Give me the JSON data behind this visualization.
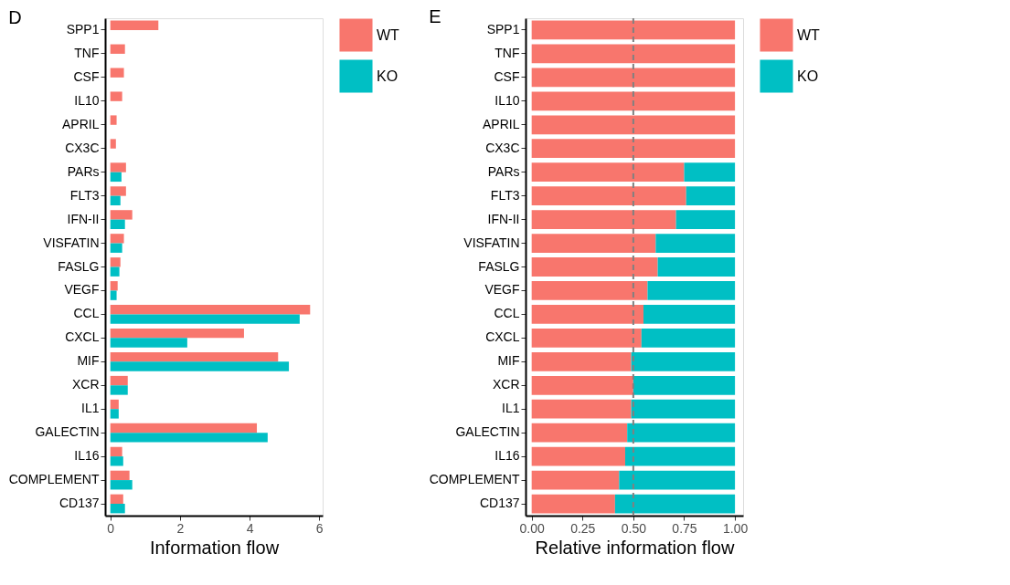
{
  "chart_data": [
    {
      "type": "bar",
      "orientation": "horizontal",
      "title": "D",
      "xlabel": "Information flow",
      "categories": [
        "SPP1",
        "TNF",
        "CSF",
        "IL10",
        "APRIL",
        "CX3C",
        "PARs",
        "FLT3",
        "IFN-II",
        "VISFATIN",
        "FASLG",
        "VEGF",
        "CCL",
        "CXCL",
        "MIF",
        "XCR",
        "IL1",
        "GALECTIN",
        "IL16",
        "COMPLEMENT",
        "CD137"
      ],
      "series": [
        {
          "name": "WT",
          "color": "#f8766d",
          "values": [
            1.38,
            0.42,
            0.39,
            0.34,
            0.18,
            0.16,
            0.45,
            0.45,
            0.63,
            0.39,
            0.29,
            0.21,
            5.74,
            3.84,
            4.82,
            0.5,
            0.24,
            4.21,
            0.34,
            0.55,
            0.37
          ]
        },
        {
          "name": "KO",
          "color": "#00bfc4",
          "values": [
            null,
            null,
            null,
            null,
            null,
            null,
            0.32,
            0.29,
            0.42,
            0.34,
            0.26,
            0.18,
            5.44,
            2.21,
            5.13,
            0.5,
            0.24,
            4.52,
            0.37,
            0.63,
            0.42
          ]
        }
      ],
      "xlim": [
        -0.15,
        6.1
      ],
      "xticks": [
        0,
        2,
        4,
        6
      ],
      "grid": false,
      "legend": "right"
    },
    {
      "type": "bar",
      "orientation": "horizontal",
      "stacked": true,
      "title": "E",
      "xlabel": "Relative information flow",
      "categories": [
        "SPP1",
        "TNF",
        "CSF",
        "IL10",
        "APRIL",
        "CX3C",
        "PARs",
        "FLT3",
        "IFN-II",
        "VISFATIN",
        "FASLG",
        "VEGF",
        "CCL",
        "CXCL",
        "MIF",
        "XCR",
        "IL1",
        "GALECTIN",
        "IL16",
        "COMPLEMENT",
        "CD137"
      ],
      "series": [
        {
          "name": "WT",
          "color": "#f8766d",
          "values": [
            1,
            1,
            1,
            1,
            1,
            1,
            0.75,
            0.76,
            0.71,
            0.61,
            0.62,
            0.57,
            0.55,
            0.54,
            0.49,
            0.5,
            0.49,
            0.47,
            0.46,
            0.43,
            0.41
          ]
        },
        {
          "name": "KO",
          "color": "#00bfc4",
          "values": [
            0,
            0,
            0,
            0,
            0,
            0,
            0.25,
            0.24,
            0.29,
            0.39,
            0.38,
            0.43,
            0.45,
            0.46,
            0.51,
            0.5,
            0.51,
            0.53,
            0.54,
            0.57,
            0.59
          ]
        }
      ],
      "xlim": [
        -0.03,
        1.04
      ],
      "xticks": [
        {
          "value": 0,
          "label": "0.00"
        },
        {
          "value": 0.25,
          "label": "0.25"
        },
        {
          "value": 0.5,
          "label": "0.50"
        },
        {
          "value": 0.75,
          "label": "0.75"
        },
        {
          "value": 1,
          "label": "1.00"
        }
      ],
      "ref_lines": [
        {
          "axis": "x",
          "value": 0.5,
          "color": "#808080",
          "line_style": "dashed"
        }
      ],
      "grid": false,
      "legend": "right"
    }
  ]
}
